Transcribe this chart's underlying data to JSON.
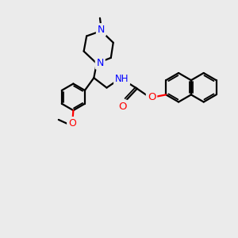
{
  "bg_color": "#ebebeb",
  "bond_color": "#000000",
  "N_color": "#0000ff",
  "O_color": "#ff0000",
  "line_width": 1.6,
  "font_size": 8.5,
  "fig_size": [
    3.0,
    3.0
  ],
  "dpi": 100,
  "xlim": [
    0,
    10
  ],
  "ylim": [
    0,
    10
  ]
}
